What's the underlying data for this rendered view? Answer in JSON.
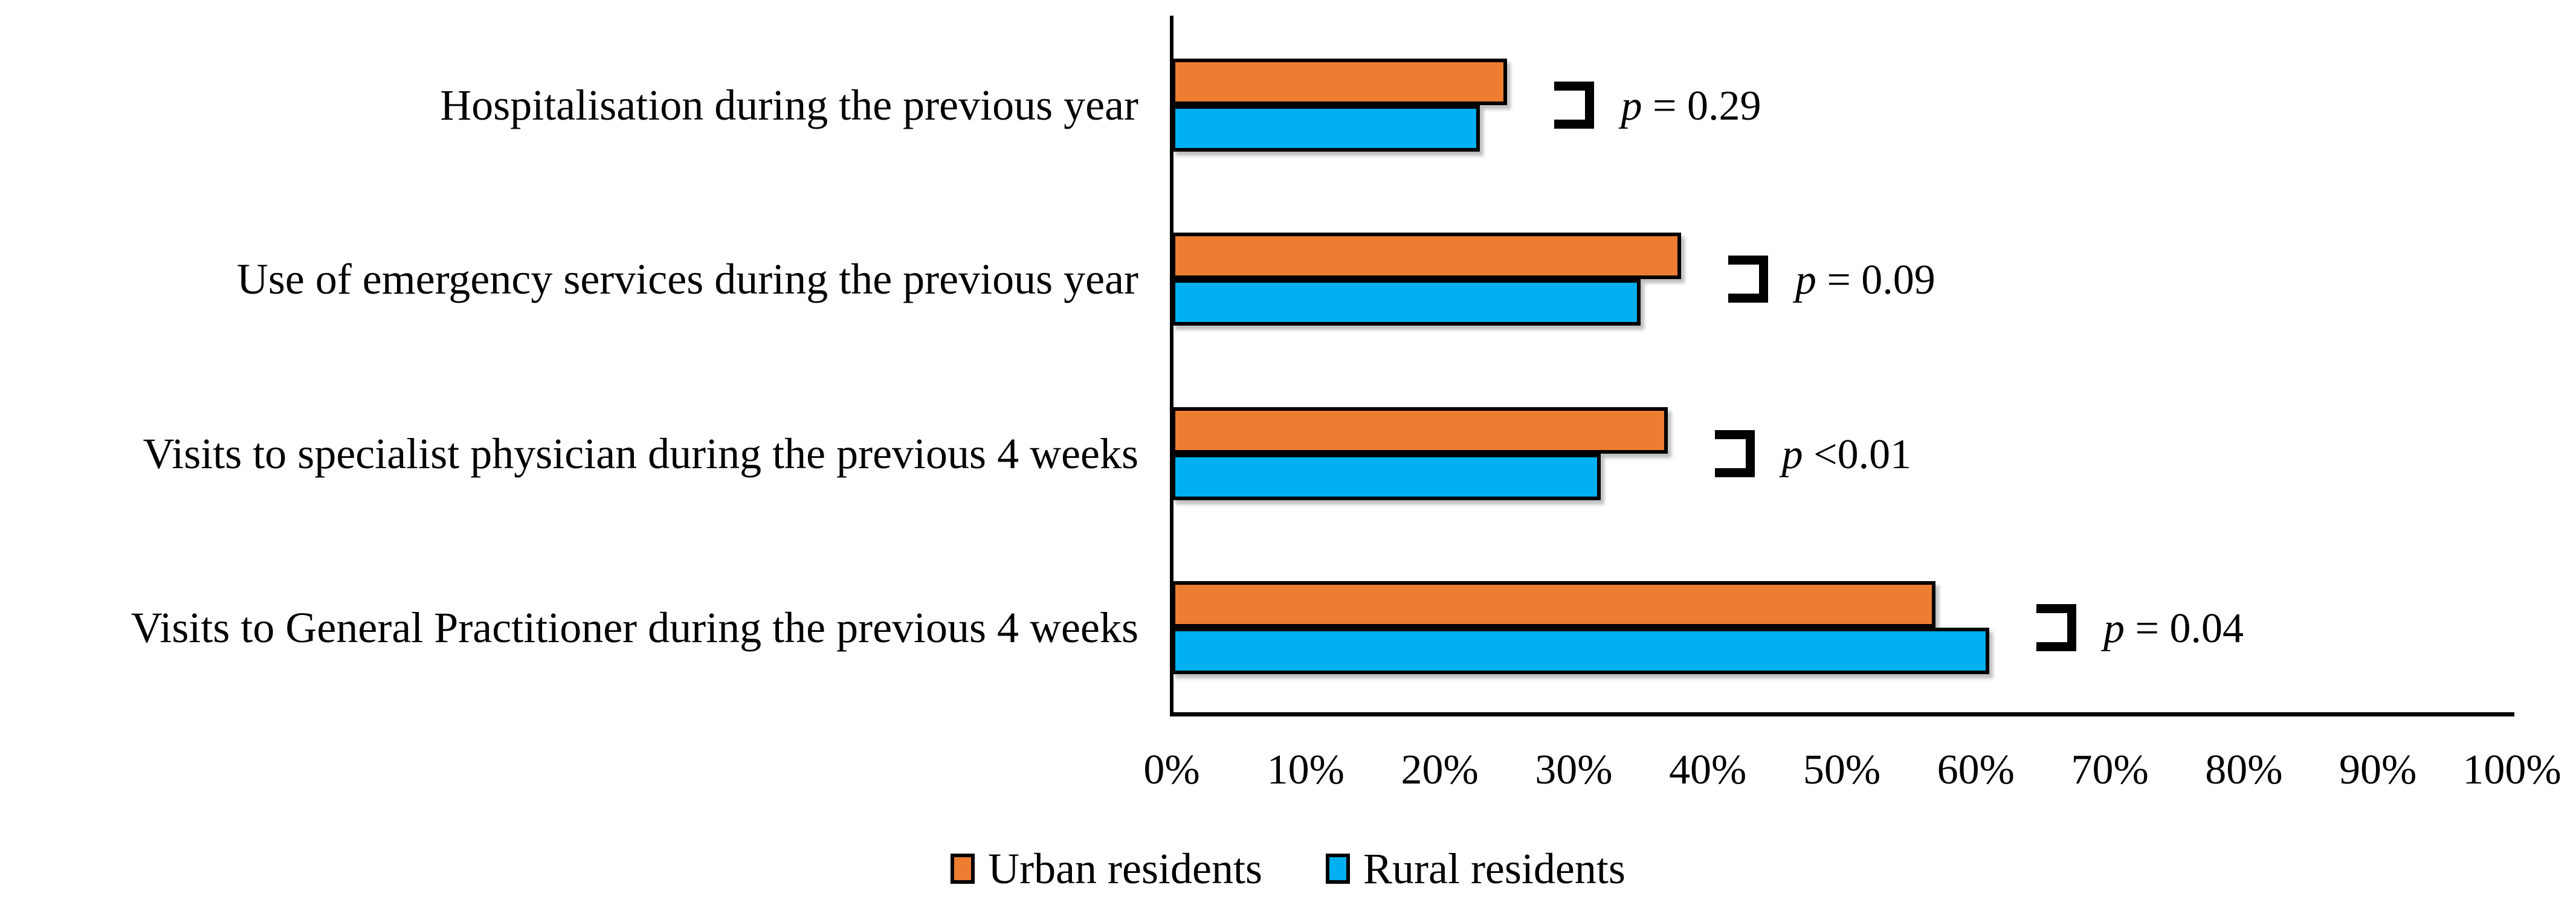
{
  "chart_data": {
    "type": "bar",
    "orientation": "horizontal",
    "title": "",
    "xlabel": "",
    "ylabel": "",
    "categories": [
      "Hospitalisation during the previous year",
      "Use of emergency services during the previous year",
      "Visits to specialist physician during the previous 4 weeks",
      "Visits to General Practitioner during the previous 4 weeks"
    ],
    "series": [
      {
        "name": "Urban residents",
        "color": "#ED7D31",
        "values": [
          25,
          38,
          37,
          57
        ]
      },
      {
        "name": "Rural residents",
        "color": "#00B0F0",
        "values": [
          23,
          35,
          32,
          61
        ]
      }
    ],
    "p_value_labels": [
      "p = 0.29",
      "p = 0.09",
      "p <0.01",
      "p = 0.04"
    ],
    "xlim": [
      0,
      100
    ],
    "x_ticks": [
      "0%",
      "10%",
      "20%",
      "30%",
      "40%",
      "50%",
      "60%",
      "70%",
      "80%",
      "90%",
      "100%"
    ],
    "grid": false,
    "legend_position": "bottom",
    "bar_outline_color": "#000000",
    "axis_color": "#000000"
  }
}
